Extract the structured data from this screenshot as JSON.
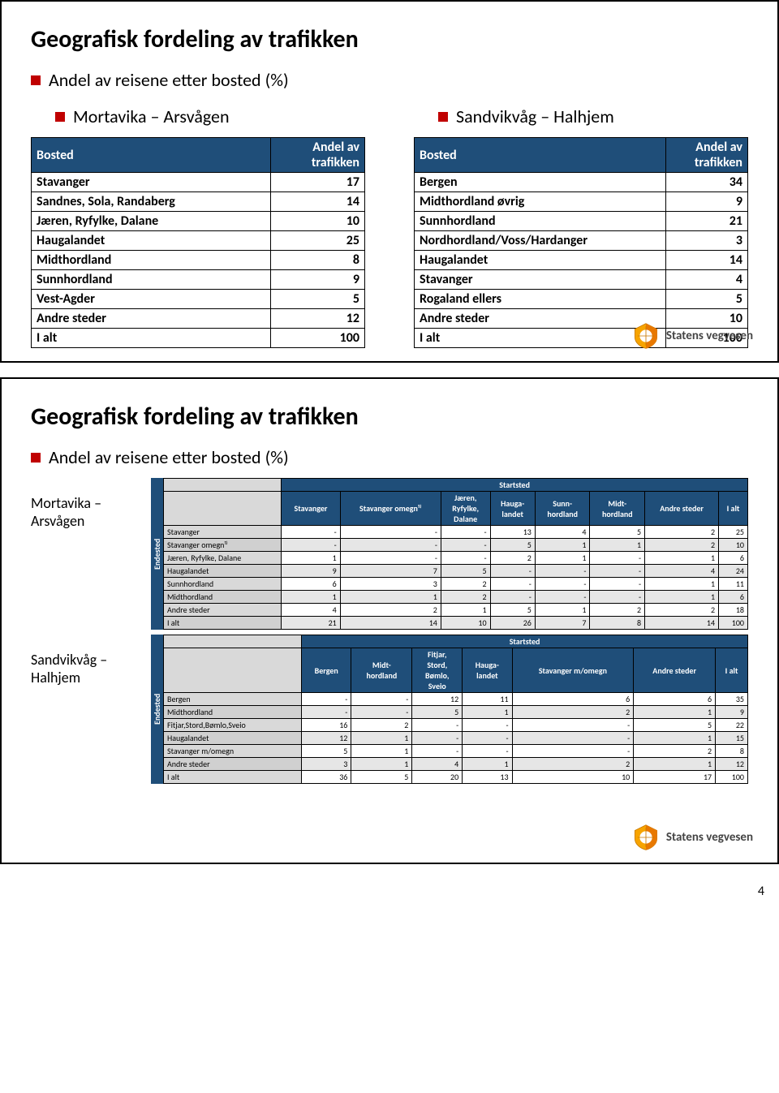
{
  "slide1": {
    "title": "Geografisk fordeling av trafikken",
    "subtitle": "Andel av reisene etter bosted (%)",
    "left_heading": "Mortavika – Arsvågen",
    "right_heading": "Sandvikvåg – Halhjem",
    "table_left": {
      "header": [
        "Bosted",
        "Andel av trafikken"
      ],
      "rows": [
        [
          "Stavanger",
          "17"
        ],
        [
          "Sandnes, Sola, Randaberg",
          "14"
        ],
        [
          "Jæren, Ryfylke, Dalane",
          "10"
        ],
        [
          "Haugalandet",
          "25"
        ],
        [
          "Midthordland",
          "8"
        ],
        [
          "Sunnhordland",
          "9"
        ],
        [
          "Vest-Agder",
          "5"
        ],
        [
          "Andre steder",
          "12"
        ],
        [
          "I alt",
          "100"
        ]
      ]
    },
    "table_right": {
      "header": [
        "Bosted",
        "Andel av trafikken"
      ],
      "rows": [
        [
          "Bergen",
          "34"
        ],
        [
          "Midthordland øvrig",
          "9"
        ],
        [
          "Sunnhordland",
          "21"
        ],
        [
          "Nordhordland/Voss/Hardanger",
          "3"
        ],
        [
          "Haugalandet",
          "14"
        ],
        [
          "Stavanger",
          "4"
        ],
        [
          "Rogaland ellers",
          "5"
        ],
        [
          "Andre steder",
          "10"
        ],
        [
          "I alt",
          "100"
        ]
      ]
    },
    "logo_text": "Statens vegvesen"
  },
  "slide2": {
    "title": "Geografisk fordeling av trafikken",
    "subtitle": "Andel av reisene etter bosted (%)",
    "label_a": "Mortavika – Arsvågen",
    "label_b": "Sandvikvåg – Halhjem",
    "side_label": "Endested",
    "span_header": "Startsted",
    "matrix_a": {
      "columns": [
        "",
        "Stavanger",
        "Stavanger omegn¹⁾",
        "Jæren, Ryfylke, Dalane",
        "Hauga-landet",
        "Sunn-hordland",
        "Midt-hordland",
        "Andre steder",
        "I alt"
      ],
      "rows": [
        [
          "Stavanger",
          "-",
          "-",
          "-",
          "13",
          "4",
          "5",
          "2",
          "25"
        ],
        [
          "Stavanger omegn¹⁾",
          "-",
          "-",
          "-",
          "5",
          "1",
          "1",
          "2",
          "10"
        ],
        [
          "Jæren, Ryfylke, Dalane",
          "1",
          "-",
          "-",
          "2",
          "1",
          "-",
          "1",
          "6"
        ],
        [
          "Haugalandet",
          "9",
          "7",
          "5",
          "-",
          "-",
          "-",
          "4",
          "24"
        ],
        [
          "Sunnhordland",
          "6",
          "3",
          "2",
          "-",
          "-",
          "-",
          "1",
          "11"
        ],
        [
          "Midthordland",
          "1",
          "1",
          "2",
          "-",
          "-",
          "-",
          "1",
          "6"
        ],
        [
          "Andre steder",
          "4",
          "2",
          "1",
          "5",
          "1",
          "2",
          "2",
          "18"
        ],
        [
          "I alt",
          "21",
          "14",
          "10",
          "26",
          "7",
          "8",
          "14",
          "100"
        ]
      ]
    },
    "matrix_b": {
      "columns": [
        "",
        "Bergen",
        "Midt-hordland",
        "Fitjar, Stord, Bømlo, Sveio",
        "Hauga-landet",
        "Stavanger m/omegn",
        "Andre steder",
        "I alt"
      ],
      "rows": [
        [
          "Bergen",
          "-",
          "-",
          "12",
          "11",
          "6",
          "6",
          "35"
        ],
        [
          "Midthordland",
          "-",
          "-",
          "5",
          "1",
          "2",
          "1",
          "9"
        ],
        [
          "Fitjar,Stord,Bømlo,Sveio",
          "16",
          "2",
          "-",
          "-",
          "-",
          "5",
          "22"
        ],
        [
          "Haugalandet",
          "12",
          "1",
          "-",
          "-",
          "-",
          "1",
          "15"
        ],
        [
          "Stavanger m/omegn",
          "5",
          "1",
          "-",
          "-",
          "-",
          "2",
          "8"
        ],
        [
          "Andre steder",
          "3",
          "1",
          "4",
          "1",
          "2",
          "1",
          "12"
        ],
        [
          "I alt",
          "36",
          "5",
          "20",
          "13",
          "10",
          "17",
          "100"
        ]
      ]
    },
    "logo_text": "Statens vegvesen"
  },
  "page_number": "4"
}
